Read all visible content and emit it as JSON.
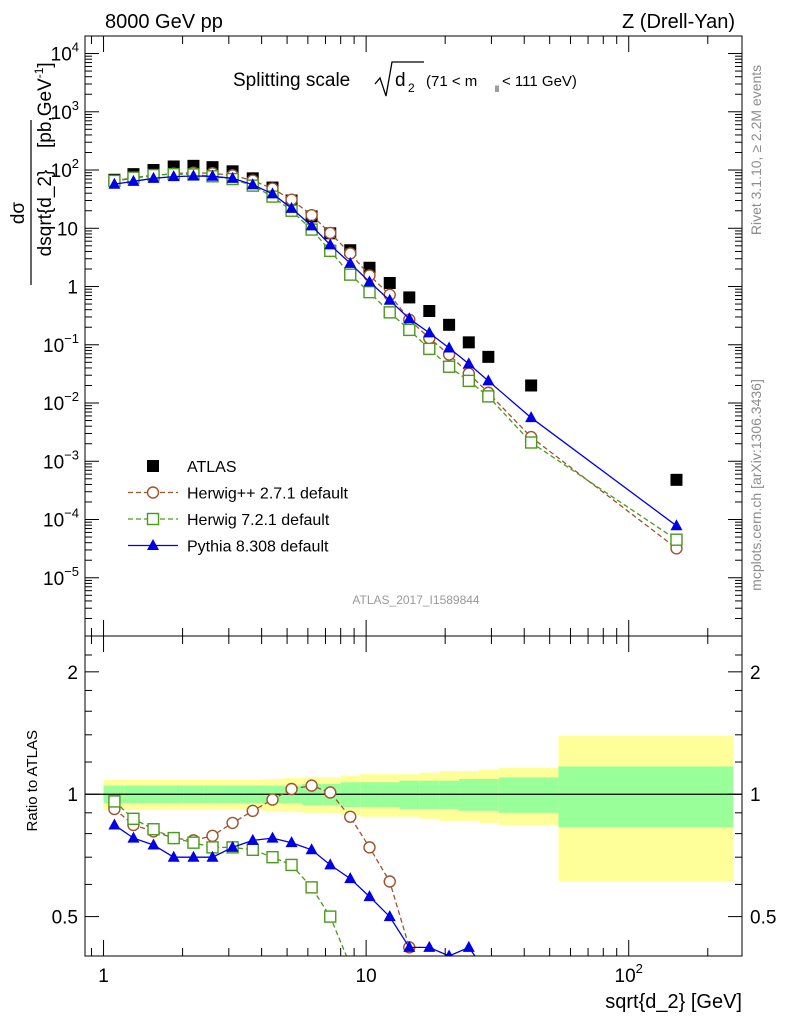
{
  "header": {
    "left": "8000 GeV pp",
    "right": "Z (Drell-Yan)"
  },
  "side_labels": {
    "rivet": "Rivet 3.1.10, ≥ 2.2M events",
    "mcplots": "mcplots.cern.ch [arXiv:1306.3436]"
  },
  "chart_data": [
    {
      "type": "scatter",
      "title": "Splitting scale √d₂ (71 < m_ll < 111 GeV)",
      "title_main": "Splitting scale",
      "title_sqrt_symbol": "d",
      "title_sqrt_sub": "2",
      "title_range": "(71 < m",
      "title_range_sub": "ll",
      "title_range_end": " < 111 GeV)",
      "xlabel": "sqrt{d_2} [GeV]",
      "ylabel_num": "dσ",
      "ylabel_den": "dsqrt{d_2}",
      "ylabel_unit": "[pb,GeV",
      "ylabel_unit_exp": "-1",
      "ylabel_unit_end": "]",
      "xscale": "log",
      "yscale": "log",
      "xlim": [
        0.85,
        270
      ],
      "ylim": [
        1e-06,
        20000
      ],
      "watermark": "ATLAS_2017_I1589844",
      "legend_position": "bottom-left",
      "x_ticks": [
        {
          "value": 1,
          "label": "1"
        },
        {
          "value": 10,
          "label": "10"
        },
        {
          "value": 100,
          "label": "10",
          "exp": "2"
        }
      ],
      "y_ticks": [
        {
          "value": 10000,
          "label": "10",
          "exp": "4"
        },
        {
          "value": 1000,
          "label": "10",
          "exp": "3"
        },
        {
          "value": 100,
          "label": "10",
          "exp": "2"
        },
        {
          "value": 10,
          "label": "10"
        },
        {
          "value": 1,
          "label": "1"
        },
        {
          "value": 0.1,
          "label": "10",
          "exp": "−1"
        },
        {
          "value": 0.01,
          "label": "10",
          "exp": "−2"
        },
        {
          "value": 0.001,
          "label": "10",
          "exp": "−3"
        },
        {
          "value": 0.0001,
          "label": "10",
          "exp": "−4"
        },
        {
          "value": 1e-05,
          "label": "10",
          "exp": "−5"
        }
      ],
      "series": [
        {
          "name": "ATLAS",
          "marker": "square",
          "color": "#000000",
          "line": false,
          "x": [
            1.1,
            1.3,
            1.55,
            1.85,
            2.2,
            2.6,
            3.1,
            3.7,
            4.4,
            5.2,
            6.2,
            7.3,
            8.7,
            10.3,
            12.3,
            14.6,
            17.4,
            20.7,
            24.6,
            29.2,
            42.5,
            152
          ],
          "y": [
            68,
            85,
            100,
            115,
            118,
            112,
            95,
            72,
            50,
            30,
            16,
            8.2,
            4.2,
            2.1,
            1.15,
            0.65,
            0.38,
            0.22,
            0.11,
            0.062,
            0.02,
            0.00048
          ]
        },
        {
          "name": "Herwig++ 2.7.1 default",
          "marker": "circle",
          "color": "#a0522d",
          "line": "dashed",
          "x": [
            1.1,
            1.3,
            1.55,
            1.85,
            2.2,
            2.6,
            3.1,
            3.7,
            4.4,
            5.2,
            6.2,
            7.3,
            8.7,
            10.3,
            12.3,
            14.6,
            17.4,
            20.7,
            24.6,
            29.2,
            42.5,
            152
          ],
          "y": [
            64,
            73,
            80,
            87,
            90,
            88,
            81,
            66,
            48,
            31,
            16.8,
            8.3,
            3.7,
            1.55,
            0.72,
            0.27,
            0.13,
            0.068,
            0.032,
            0.015,
            0.0026,
            3.2e-05
          ]
        },
        {
          "name": "Herwig 7.2.1 default",
          "marker": "square-open",
          "color": "#4a9a1c",
          "line": "dashed",
          "x": [
            1.1,
            1.3,
            1.55,
            1.85,
            2.2,
            2.6,
            3.1,
            3.7,
            4.4,
            5.2,
            6.2,
            7.3,
            8.7,
            10.3,
            12.3,
            14.6,
            17.4,
            20.7,
            24.6,
            29.2,
            42.5,
            152
          ],
          "y": [
            65,
            74,
            82,
            85,
            84,
            78,
            70,
            54,
            35,
            20,
            9.5,
            4.1,
            1.6,
            0.8,
            0.36,
            0.18,
            0.085,
            0.042,
            0.024,
            0.013,
            0.0021,
            4.5e-05
          ]
        },
        {
          "name": "Pythia 8.308 default",
          "marker": "triangle",
          "color": "#0000e6",
          "line": "solid",
          "x": [
            1.1,
            1.3,
            1.55,
            1.85,
            2.2,
            2.6,
            3.1,
            3.7,
            4.4,
            5.2,
            6.2,
            7.3,
            8.7,
            10.3,
            12.3,
            14.6,
            17.4,
            20.7,
            24.6,
            29.2,
            42.5,
            152
          ],
          "y": [
            57,
            64,
            72,
            77,
            79,
            78,
            72,
            56,
            39,
            22,
            11,
            5.2,
            2.5,
            1.2,
            0.58,
            0.28,
            0.16,
            0.088,
            0.047,
            0.024,
            0.0056,
            7.8e-05
          ]
        }
      ]
    },
    {
      "type": "scatter",
      "ylabel": "Ratio to ATLAS",
      "xscale": "log",
      "xlim": [
        0.85,
        270
      ],
      "ylim": [
        0.4,
        2.45
      ],
      "y_ticks": [
        {
          "value": 2,
          "label": "2"
        },
        {
          "value": 1,
          "label": "1"
        },
        {
          "value": 0.5,
          "label": "0.5"
        }
      ],
      "reference_line": 1,
      "bands": {
        "edges": [
          1,
          1.2,
          1.42,
          1.7,
          2.02,
          2.4,
          2.85,
          3.4,
          4.05,
          4.8,
          5.7,
          6.8,
          8.0,
          9.5,
          11.3,
          13.4,
          16.0,
          19.0,
          22.6,
          26.9,
          32,
          54,
          250
        ],
        "stat_halfwidth": [
          0.05,
          0.05,
          0.05,
          0.05,
          0.05,
          0.05,
          0.05,
          0.05,
          0.05,
          0.05,
          0.06,
          0.06,
          0.07,
          0.07,
          0.07,
          0.08,
          0.08,
          0.08,
          0.09,
          0.09,
          0.1,
          0.17
        ],
        "total_halfwidth": [
          0.085,
          0.085,
          0.085,
          0.085,
          0.085,
          0.085,
          0.085,
          0.085,
          0.09,
          0.095,
          0.1,
          0.1,
          0.11,
          0.12,
          0.12,
          0.12,
          0.13,
          0.14,
          0.14,
          0.15,
          0.16,
          0.39
        ],
        "stat_color": "#99ff99",
        "total_color": "#ffff99"
      },
      "series": [
        {
          "name": "Herwig++ 2.7.1 default",
          "marker": "circle",
          "color": "#a0522d",
          "line": "dashed",
          "x": [
            1.1,
            1.3,
            1.55,
            1.85,
            2.2,
            2.6,
            3.1,
            3.7,
            4.4,
            5.2,
            6.2,
            7.3,
            8.7,
            10.3,
            12.3,
            14.6
          ],
          "y": [
            0.92,
            0.84,
            0.81,
            0.78,
            0.77,
            0.79,
            0.85,
            0.91,
            0.97,
            1.03,
            1.05,
            1.01,
            0.88,
            0.74,
            0.61,
            0.42
          ]
        },
        {
          "name": "Herwig 7.2.1 default",
          "marker": "square-open",
          "color": "#4a9a1c",
          "line": "dashed",
          "x": [
            1.1,
            1.3,
            1.55,
            1.85,
            2.2,
            2.6,
            3.1,
            3.7,
            4.4,
            5.2,
            6.2,
            7.3,
            8.7
          ],
          "y": [
            0.96,
            0.87,
            0.82,
            0.78,
            0.76,
            0.74,
            0.74,
            0.73,
            0.7,
            0.67,
            0.59,
            0.5,
            0.38
          ]
        },
        {
          "name": "Pythia 8.308 default",
          "marker": "triangle",
          "color": "#0000e6",
          "line": "solid",
          "x": [
            1.1,
            1.3,
            1.55,
            1.85,
            2.2,
            2.6,
            3.1,
            3.7,
            4.4,
            5.2,
            6.2,
            7.3,
            8.7,
            10.3,
            12.3,
            14.6,
            17.4,
            20.7,
            24.6,
            29.2
          ],
          "y": [
            0.84,
            0.78,
            0.75,
            0.7,
            0.7,
            0.7,
            0.74,
            0.77,
            0.78,
            0.76,
            0.73,
            0.67,
            0.62,
            0.56,
            0.5,
            0.42,
            0.42,
            0.4,
            0.42,
            0.36
          ]
        }
      ]
    }
  ]
}
